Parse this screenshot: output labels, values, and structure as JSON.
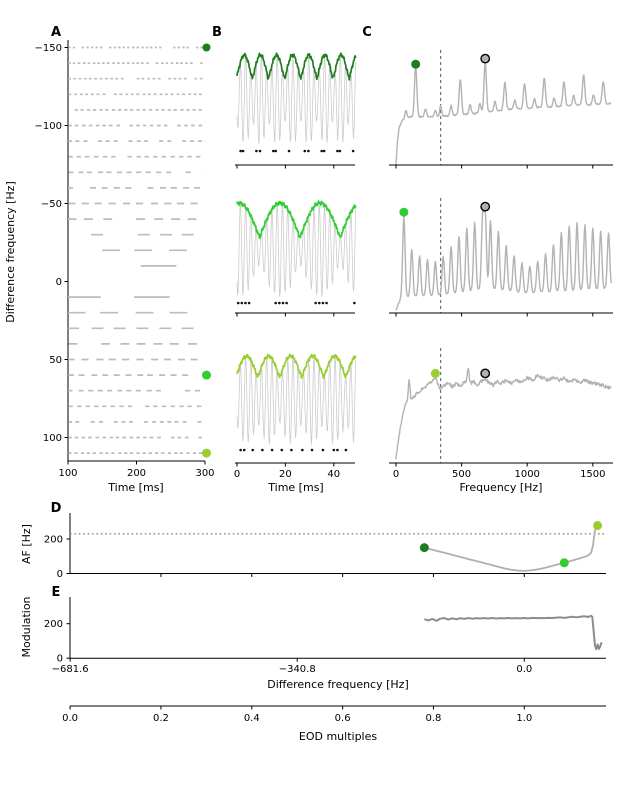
{
  "figure": {
    "panel_labels": [
      "A",
      "B",
      "C",
      "D",
      "E"
    ],
    "labels": {
      "ylabel_a": "Difference frequency [Hz]",
      "xlabel_time": "Time [ms]",
      "xlabel_freq": "Frequency [Hz]",
      "ylabel_d": "AF [Hz]",
      "ylabel_e": "Modulation",
      "xlabel_diff_freq": "Difference frequency [Hz]",
      "xlabel_eod": "EOD multiples"
    }
  },
  "colors": {
    "green_dark": "#1f7d1f",
    "green_mid": "#32cd32",
    "green_light": "#9acd32",
    "raster_gray": "#bcbcbc",
    "carrier_gray": "#cccccc",
    "spectrum_gray": "#b3b3b3",
    "line_d_gray": "#b0b0b0",
    "line_e_gray": "#8c8c8c",
    "marker_circle_fill": "#b0b0b0",
    "marker_circle_edge": "#000000",
    "dotted_line": "#999999",
    "dashed_line": "#444444",
    "spike_dot": "#111111",
    "axis": "#000000"
  },
  "chart_data": [
    {
      "panel": "A",
      "type": "raster",
      "xlabel": "Time [ms]",
      "ylabel": "Difference frequency [Hz]",
      "xlim": [
        100,
        300
      ],
      "xticks": [
        100,
        200,
        300
      ],
      "ylim_top_to_bottom": [
        -155,
        115
      ],
      "yticks": [
        -150,
        -100,
        -50,
        0,
        50,
        100
      ],
      "rows_df_hz": [
        -150,
        -140,
        -130,
        -120,
        -110,
        -100,
        -90,
        -80,
        -70,
        -60,
        -50,
        -40,
        -30,
        -20,
        -10,
        10,
        20,
        30,
        40,
        50,
        60,
        70,
        80,
        90,
        100,
        110
      ],
      "dash_duty_cycle": 0.52,
      "highlights": [
        {
          "df": -150,
          "color_key": "green_dark"
        },
        {
          "df": 60,
          "color_key": "green_mid"
        },
        {
          "df": 110,
          "color_key": "green_light"
        }
      ]
    },
    {
      "panel": "B",
      "type": "line",
      "xlabel": "Time [ms]",
      "xticks": [
        0,
        20,
        40
      ],
      "xlim": [
        0,
        50
      ],
      "carrier_hz": 460,
      "subplots": [
        {
          "beat_hz": 150,
          "env_color_key": "green_dark",
          "env_min": 0.48,
          "env_phase_ms": 3,
          "env_pow": 1.2,
          "spike_times_ms": [
            1.5,
            2.5,
            8,
            9.5,
            15,
            16,
            21.5,
            28,
            29.5,
            35,
            36,
            41.5,
            42.5,
            48
          ]
        },
        {
          "beat_hz": 60,
          "env_color_key": "green_mid",
          "env_min": 0.26,
          "env_phase_ms": 1,
          "env_pow": 1.0,
          "spike_times_ms": [
            0.5,
            2,
            3.5,
            5,
            16,
            17.5,
            19,
            20.5,
            32.5,
            34,
            35.5,
            37,
            48.5
          ]
        },
        {
          "beat_hz": 110,
          "env_color_key": "green_light",
          "env_min": 0.52,
          "env_phase_ms": 4,
          "env_pow": 1.1,
          "spike_times_ms": [
            1.5,
            3,
            6.5,
            10.5,
            14.5,
            18.5,
            22.5,
            27,
            31,
            35.5,
            40,
            41.5,
            45
          ]
        }
      ]
    },
    {
      "panel": "C",
      "type": "line",
      "xlabel": "Frequency [Hz]",
      "xticks": [
        0,
        500,
        1000,
        1500
      ],
      "xlim": [
        0,
        1640
      ],
      "eod_frequency_hz": 340.8,
      "subplots": [
        {
          "baseline": [
            [
              0,
              0
            ],
            [
              10,
              0.2
            ],
            [
              25,
              0.34
            ],
            [
              50,
              0.4
            ],
            [
              100,
              0.43
            ],
            [
              300,
              0.43
            ],
            [
              600,
              0.46
            ],
            [
              900,
              0.5
            ],
            [
              1200,
              0.52
            ],
            [
              1640,
              0.55
            ]
          ],
          "peaks": [
            [
              75,
              0.07,
              8
            ],
            [
              150,
              0.45,
              9
            ],
            [
              225,
              0.07,
              8
            ],
            [
              300,
              0.06,
              8
            ],
            [
              340,
              0.1,
              7
            ],
            [
              420,
              0.09,
              8
            ],
            [
              490,
              0.32,
              9
            ],
            [
              565,
              0.08,
              8
            ],
            [
              640,
              0.08,
              8
            ],
            [
              680,
              0.45,
              9
            ],
            [
              755,
              0.09,
              8
            ],
            [
              830,
              0.25,
              9
            ],
            [
              905,
              0.08,
              8
            ],
            [
              980,
              0.22,
              9
            ],
            [
              1055,
              0.08,
              8
            ],
            [
              1130,
              0.26,
              9
            ],
            [
              1205,
              0.08,
              8
            ],
            [
              1280,
              0.22,
              9
            ],
            [
              1355,
              0.09,
              8
            ],
            [
              1430,
              0.27,
              9
            ],
            [
              1505,
              0.09,
              8
            ],
            [
              1580,
              0.2,
              9
            ]
          ],
          "jitter": 0.012,
          "markers": [
            {
              "f": 150,
              "a": 0.9,
              "style": "dot",
              "color_key": "green_dark"
            },
            {
              "f": 680,
              "a": 0.95,
              "style": "circle"
            }
          ]
        },
        {
          "baseline": [
            [
              0,
              0.03
            ],
            [
              40,
              0.14
            ],
            [
              340,
              0.16
            ],
            [
              700,
              0.22
            ],
            [
              1000,
              0.18
            ],
            [
              1640,
              0.22
            ]
          ],
          "peaks": [
            [
              60,
              0.72,
              9
            ],
            [
              120,
              0.42,
              9
            ],
            [
              180,
              0.36,
              9
            ],
            [
              240,
              0.32,
              9
            ],
            [
              300,
              0.3,
              9
            ],
            [
              360,
              0.34,
              9
            ],
            [
              420,
              0.42,
              9
            ],
            [
              480,
              0.5,
              9
            ],
            [
              540,
              0.56,
              9
            ],
            [
              600,
              0.6,
              9
            ],
            [
              660,
              0.62,
              9
            ],
            [
              680,
              0.66,
              9
            ],
            [
              720,
              0.6,
              9
            ],
            [
              780,
              0.52,
              9
            ],
            [
              840,
              0.4,
              9
            ],
            [
              900,
              0.32,
              9
            ],
            [
              960,
              0.26,
              9
            ],
            [
              1020,
              0.24,
              9
            ],
            [
              1080,
              0.28,
              9
            ],
            [
              1140,
              0.34,
              9
            ],
            [
              1200,
              0.42,
              9
            ],
            [
              1260,
              0.52,
              9
            ],
            [
              1320,
              0.58,
              9
            ],
            [
              1380,
              0.6,
              9
            ],
            [
              1440,
              0.58,
              9
            ],
            [
              1500,
              0.55,
              9
            ],
            [
              1560,
              0.52,
              9
            ],
            [
              1620,
              0.5,
              9
            ]
          ],
          "jitter": 0.012,
          "markers": [
            {
              "f": 60,
              "a": 0.9,
              "style": "dot",
              "color_key": "green_mid"
            },
            {
              "f": 680,
              "a": 0.95,
              "style": "circle"
            }
          ]
        },
        {
          "baseline": [
            [
              0,
              0.04
            ],
            [
              15,
              0.18
            ],
            [
              30,
              0.3
            ],
            [
              45,
              0.4
            ],
            [
              60,
              0.48
            ],
            [
              80,
              0.54
            ],
            [
              110,
              0.56
            ],
            [
              140,
              0.6
            ],
            [
              170,
              0.63
            ],
            [
              200,
              0.66
            ],
            [
              240,
              0.7
            ],
            [
              280,
              0.74
            ],
            [
              300,
              0.76
            ],
            [
              320,
              0.7
            ],
            [
              340,
              0.66
            ],
            [
              370,
              0.69
            ],
            [
              400,
              0.71
            ],
            [
              430,
              0.68
            ],
            [
              460,
              0.71
            ],
            [
              490,
              0.69
            ],
            [
              520,
              0.72
            ],
            [
              560,
              0.7
            ],
            [
              590,
              0.73
            ],
            [
              620,
              0.7
            ],
            [
              650,
              0.73
            ],
            [
              680,
              0.75
            ],
            [
              710,
              0.72
            ],
            [
              740,
              0.69
            ],
            [
              770,
              0.73
            ],
            [
              800,
              0.71
            ],
            [
              840,
              0.74
            ],
            [
              880,
              0.71
            ],
            [
              920,
              0.74
            ],
            [
              960,
              0.72
            ],
            [
              1000,
              0.76
            ],
            [
              1040,
              0.74
            ],
            [
              1080,
              0.78
            ],
            [
              1120,
              0.76
            ],
            [
              1160,
              0.74
            ],
            [
              1200,
              0.77
            ],
            [
              1240,
              0.74
            ],
            [
              1280,
              0.76
            ],
            [
              1320,
              0.72
            ],
            [
              1360,
              0.75
            ],
            [
              1400,
              0.72
            ],
            [
              1440,
              0.74
            ],
            [
              1480,
              0.72
            ],
            [
              1520,
              0.71
            ],
            [
              1560,
              0.7
            ],
            [
              1600,
              0.68
            ],
            [
              1640,
              0.67
            ]
          ],
          "peaks": [
            [
              100,
              0.2,
              6
            ],
            [
              550,
              0.14,
              7
            ]
          ],
          "jitter": 0.03,
          "markers": [
            {
              "f": 300,
              "a": 0.8,
              "style": "dot",
              "color_key": "green_light"
            },
            {
              "f": 680,
              "a": 0.8,
              "style": "circle"
            }
          ]
        }
      ]
    },
    {
      "panel": "D",
      "type": "line",
      "ylabel": "AF [Hz]",
      "yticks": [
        0,
        200
      ],
      "xlim_hz": [
        -681.6,
        123
      ],
      "xticks_eod_multiples_unlabeled": [
        0.2,
        0.4,
        0.6,
        0.8,
        1.0
      ],
      "dotted_hline_af_hz": 230,
      "line_df_af": [
        [
          -150,
          150
        ],
        [
          -140,
          140
        ],
        [
          -130,
          130
        ],
        [
          -120,
          120
        ],
        [
          -110,
          110
        ],
        [
          -100,
          100
        ],
        [
          -90,
          90
        ],
        [
          -80,
          80
        ],
        [
          -70,
          70
        ],
        [
          -60,
          60
        ],
        [
          -50,
          50
        ],
        [
          -40,
          40
        ],
        [
          -30,
          30
        ],
        [
          -20,
          22
        ],
        [
          -10,
          17
        ],
        [
          0,
          15
        ],
        [
          10,
          18
        ],
        [
          20,
          24
        ],
        [
          30,
          32
        ],
        [
          40,
          42
        ],
        [
          50,
          52
        ],
        [
          60,
          62
        ],
        [
          70,
          73
        ],
        [
          80,
          84
        ],
        [
          90,
          96
        ],
        [
          95,
          103
        ],
        [
          100,
          118
        ],
        [
          103,
          160
        ],
        [
          106,
          250
        ],
        [
          110,
          278
        ]
      ],
      "markers": [
        {
          "df": -150,
          "af": 150,
          "color_key": "green_dark"
        },
        {
          "df": 60,
          "af": 62,
          "color_key": "green_mid"
        },
        {
          "df": 110,
          "af": 278,
          "color_key": "green_light"
        }
      ]
    },
    {
      "panel": "E",
      "type": "line",
      "ylabel": "Modulation",
      "yticks": [
        0,
        200
      ],
      "xlabel": "Difference frequency [Hz]",
      "xticks": [
        -681.6,
        -340.8,
        0.0
      ],
      "xtick_labels": [
        "−681.6",
        "−340.8",
        "0.0"
      ],
      "line_df_mod": [
        [
          -150,
          226
        ],
        [
          -144,
          219
        ],
        [
          -138,
          228
        ],
        [
          -132,
          217
        ],
        [
          -126,
          229
        ],
        [
          -120,
          233
        ],
        [
          -114,
          224
        ],
        [
          -108,
          231
        ],
        [
          -102,
          226
        ],
        [
          -96,
          232
        ],
        [
          -90,
          228
        ],
        [
          -84,
          233
        ],
        [
          -78,
          229
        ],
        [
          -72,
          232
        ],
        [
          -66,
          230
        ],
        [
          -60,
          232
        ],
        [
          -54,
          230
        ],
        [
          -48,
          233
        ],
        [
          -42,
          230
        ],
        [
          -36,
          232
        ],
        [
          -30,
          231
        ],
        [
          -24,
          233
        ],
        [
          -18,
          231
        ],
        [
          -12,
          232
        ],
        [
          -6,
          231
        ],
        [
          0,
          233
        ],
        [
          6,
          231
        ],
        [
          12,
          234
        ],
        [
          18,
          232
        ],
        [
          24,
          233
        ],
        [
          30,
          232
        ],
        [
          36,
          234
        ],
        [
          42,
          233
        ],
        [
          48,
          235
        ],
        [
          54,
          237
        ],
        [
          60,
          234
        ],
        [
          66,
          237
        ],
        [
          72,
          240
        ],
        [
          78,
          237
        ],
        [
          84,
          240
        ],
        [
          90,
          243
        ],
        [
          96,
          239
        ],
        [
          100,
          246
        ],
        [
          102,
          240
        ],
        [
          104,
          160
        ],
        [
          106,
          75
        ],
        [
          108,
          52
        ],
        [
          110,
          80
        ],
        [
          112,
          54
        ],
        [
          114,
          70
        ],
        [
          116,
          92
        ]
      ]
    },
    {
      "panel": "EOD-axis",
      "type": "axis",
      "label": "EOD multiples",
      "ticks": [
        0.0,
        0.2,
        0.4,
        0.6,
        0.8,
        1.0
      ],
      "tick_labels": [
        "0.0",
        "0.2",
        "0.4",
        "0.6",
        "0.8",
        "1.0"
      ],
      "xlim_eod": [
        0.0,
        1.18
      ]
    }
  ]
}
